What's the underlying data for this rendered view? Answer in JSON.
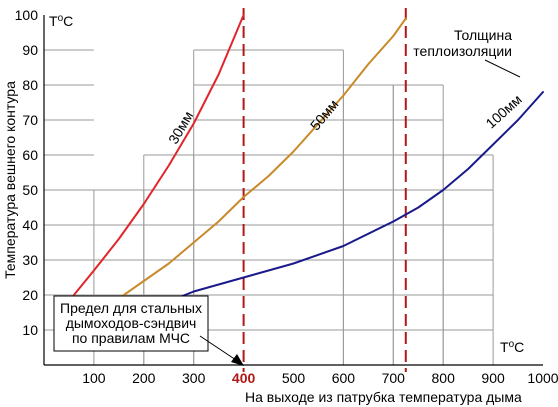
{
  "chart_data": {
    "type": "line",
    "title": "",
    "xlabel": "На выходе из патрубка температура дыма",
    "ylabel": "Температура вешнего контура",
    "x_unit": "ToC",
    "y_unit": "ToC",
    "xlim": [
      0,
      1000
    ],
    "ylim": [
      0,
      100
    ],
    "x_ticks": [
      100,
      200,
      300,
      400,
      500,
      600,
      700,
      800,
      900,
      1000
    ],
    "y_ticks": [
      10,
      20,
      30,
      40,
      50,
      60,
      70,
      80,
      90,
      100
    ],
    "highlight_x_tick": 400,
    "legend_title": "Толщина теплоизоляции",
    "series": [
      {
        "name": "30мм",
        "color": "#e0262b",
        "x": [
          60,
          100,
          150,
          200,
          250,
          300,
          350,
          400
        ],
        "y": [
          20,
          27,
          36,
          46,
          57,
          69,
          83,
          100
        ]
      },
      {
        "name": "50мм",
        "color": "#c98a2a",
        "x": [
          150,
          200,
          250,
          300,
          350,
          400,
          450,
          500,
          550,
          600,
          650,
          700,
          725
        ],
        "y": [
          19,
          24,
          29,
          35,
          41,
          48,
          54,
          61,
          69,
          77,
          86,
          94,
          99
        ]
      },
      {
        "name": "100мм",
        "color": "#1a1a8c",
        "x": [
          265,
          300,
          400,
          500,
          600,
          700,
          750,
          800,
          850,
          900,
          950,
          1000
        ],
        "y": [
          19,
          21,
          25,
          29,
          34,
          41,
          45,
          50,
          56,
          63,
          70,
          78
        ]
      }
    ],
    "reference_lines": [
      {
        "x": 400,
        "color": "#b01818"
      },
      {
        "x": 725,
        "color": "#b01818"
      }
    ],
    "annotation": {
      "text": [
        "Предел для стальных",
        "дымоходов-сэндвич",
        "по правилам МЧС"
      ]
    },
    "steps": [
      {
        "x_start": 100,
        "x_end": 200,
        "y": 50
      },
      {
        "x_start": 200,
        "x_end": 300,
        "y": 60
      },
      {
        "x_start": 300,
        "x_end": 600,
        "y": 90
      },
      {
        "x_start": 600,
        "x_end": 700,
        "y": 80
      },
      {
        "x_start": 700,
        "x_end": 800,
        "y": 80
      },
      {
        "x_start": 800,
        "x_end": 900,
        "y": 60
      }
    ]
  }
}
